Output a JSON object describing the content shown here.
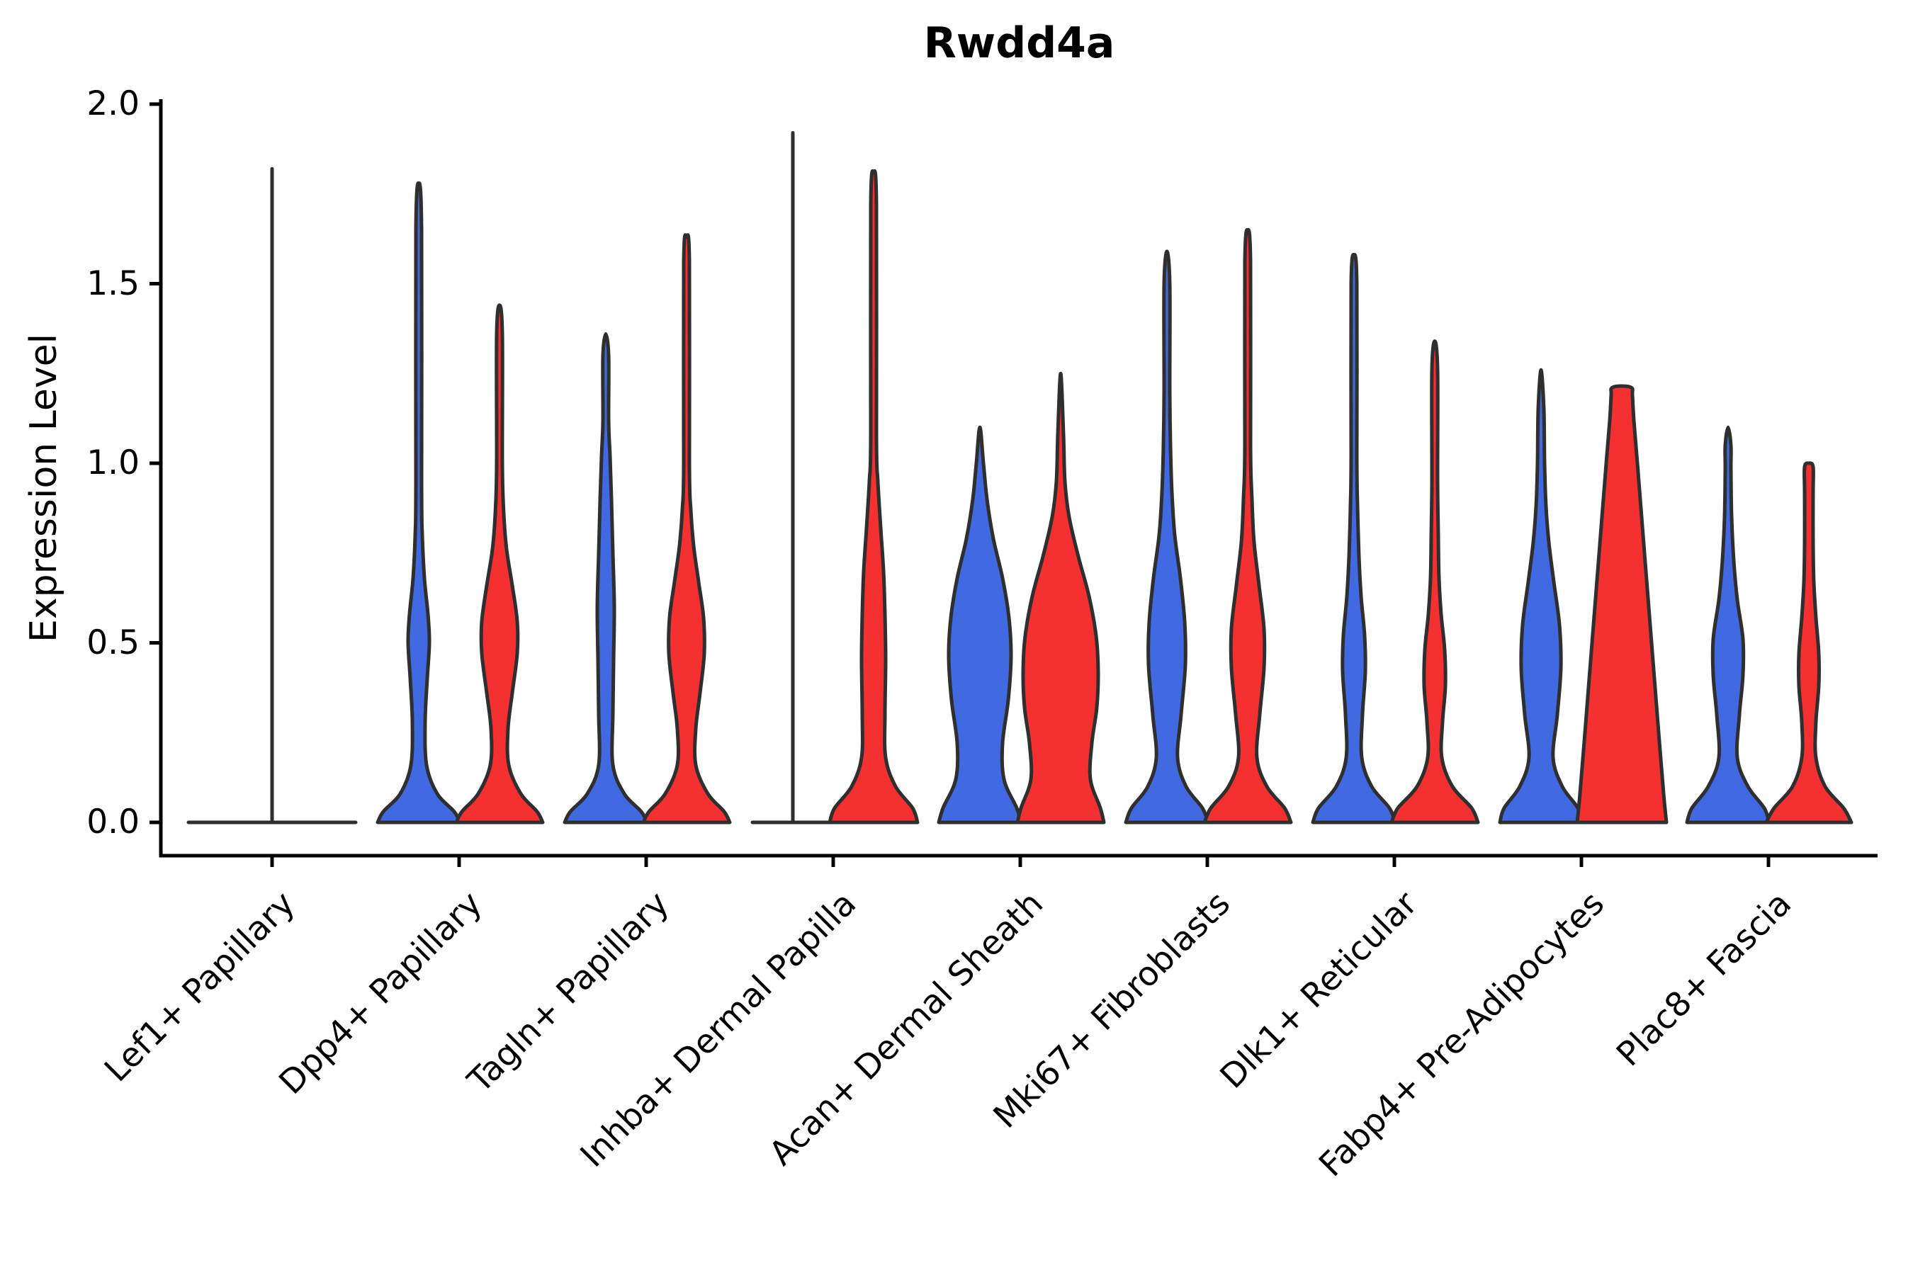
{
  "chart_data": {
    "type": "violin",
    "title": "Rwdd4a",
    "xlabel": "",
    "ylabel": "Expression Level",
    "ylim": [
      0,
      2
    ],
    "yticks": [
      0,
      0.5,
      1.0,
      1.5,
      2.0
    ],
    "ytick_labels": [
      "0.0",
      "0.5",
      "1.0",
      "1.5",
      "2.0"
    ],
    "grid": false,
    "legend": "none",
    "categories": [
      "Lef1+ Papillary",
      "Dpp4+ Papillary",
      "Tagln+ Papillary",
      "Inhba+ Dermal Papilla",
      "Acan+ Dermal Sheath",
      "Mki67+ Fibroblasts",
      "Dlk1+ Reticular",
      "Fabp4+ Pre-Adipocytes",
      "Plac8+ Fascia"
    ],
    "series": [
      {
        "id": "blue",
        "color": "#4169E1"
      },
      {
        "id": "red",
        "color": "#F43030"
      }
    ],
    "outline_color": "#2f2f2f",
    "axis_color": "#000000",
    "violins": [
      {
        "category_index": 0,
        "series": "single",
        "type": "flat",
        "flat_halfwidth": 118,
        "spike_top": 1.82
      },
      {
        "category_index": 1,
        "series": "blue",
        "type": "density",
        "max": 1.78,
        "profile": [
          [
            0,
            58
          ],
          [
            0.03,
            50
          ],
          [
            0.08,
            26
          ],
          [
            0.16,
            11
          ],
          [
            0.28,
            9
          ],
          [
            0.4,
            12
          ],
          [
            0.5,
            15
          ],
          [
            0.58,
            13
          ],
          [
            0.68,
            8
          ],
          [
            0.8,
            5
          ],
          [
            0.95,
            4
          ],
          [
            1.65,
            4
          ],
          [
            1.78,
            0
          ]
        ]
      },
      {
        "category_index": 1,
        "series": "red",
        "type": "density",
        "max": 1.44,
        "profile": [
          [
            0,
            61
          ],
          [
            0.03,
            53
          ],
          [
            0.08,
            30
          ],
          [
            0.16,
            13
          ],
          [
            0.26,
            12
          ],
          [
            0.36,
            18
          ],
          [
            0.47,
            25
          ],
          [
            0.56,
            25
          ],
          [
            0.66,
            18
          ],
          [
            0.76,
            10
          ],
          [
            0.86,
            6
          ],
          [
            1.0,
            4
          ],
          [
            1.36,
            4
          ],
          [
            1.44,
            0
          ]
        ]
      },
      {
        "category_index": 2,
        "series": "blue",
        "type": "density",
        "max": 1.36,
        "profile": [
          [
            0,
            58
          ],
          [
            0.03,
            50
          ],
          [
            0.08,
            26
          ],
          [
            0.16,
            10
          ],
          [
            0.3,
            10
          ],
          [
            0.45,
            11
          ],
          [
            0.6,
            12
          ],
          [
            0.75,
            10
          ],
          [
            0.9,
            8
          ],
          [
            1.02,
            6
          ],
          [
            1.12,
            4
          ],
          [
            1.3,
            4
          ],
          [
            1.36,
            0
          ]
        ]
      },
      {
        "category_index": 2,
        "series": "red",
        "type": "density",
        "max": 1.63,
        "profile": [
          [
            0,
            61
          ],
          [
            0.03,
            53
          ],
          [
            0.08,
            30
          ],
          [
            0.16,
            13
          ],
          [
            0.26,
            13
          ],
          [
            0.36,
            19
          ],
          [
            0.47,
            25
          ],
          [
            0.57,
            24
          ],
          [
            0.67,
            17
          ],
          [
            0.77,
            10
          ],
          [
            0.87,
            6
          ],
          [
            1.0,
            4
          ],
          [
            1.56,
            4
          ],
          [
            1.63,
            0
          ]
        ]
      },
      {
        "category_index": 3,
        "series": "blue",
        "type": "flat",
        "flat_halfwidth": 57,
        "spike_top": 1.92
      },
      {
        "category_index": 3,
        "series": "red",
        "type": "density",
        "max": 1.81,
        "profile": [
          [
            0,
            62
          ],
          [
            0.04,
            55
          ],
          [
            0.1,
            31
          ],
          [
            0.18,
            17
          ],
          [
            0.3,
            16
          ],
          [
            0.45,
            17
          ],
          [
            0.58,
            16
          ],
          [
            0.7,
            14
          ],
          [
            0.82,
            10
          ],
          [
            0.95,
            6
          ],
          [
            1.08,
            4
          ],
          [
            1.72,
            4
          ],
          [
            1.81,
            0
          ]
        ]
      },
      {
        "category_index": 4,
        "series": "blue",
        "type": "density",
        "max": 1.1,
        "profile": [
          [
            0,
            58
          ],
          [
            0.04,
            52
          ],
          [
            0.12,
            34
          ],
          [
            0.22,
            32
          ],
          [
            0.34,
            40
          ],
          [
            0.46,
            44
          ],
          [
            0.57,
            41
          ],
          [
            0.68,
            32
          ],
          [
            0.79,
            19
          ],
          [
            0.9,
            10
          ],
          [
            1.0,
            5
          ],
          [
            1.1,
            0
          ]
        ]
      },
      {
        "category_index": 4,
        "series": "red",
        "type": "density",
        "max": 1.25,
        "profile": [
          [
            0,
            61
          ],
          [
            0.04,
            56
          ],
          [
            0.12,
            42
          ],
          [
            0.22,
            44
          ],
          [
            0.32,
            51
          ],
          [
            0.42,
            53
          ],
          [
            0.52,
            50
          ],
          [
            0.63,
            40
          ],
          [
            0.74,
            25
          ],
          [
            0.85,
            12
          ],
          [
            0.95,
            6
          ],
          [
            1.08,
            4
          ],
          [
            1.25,
            0
          ]
        ]
      },
      {
        "category_index": 5,
        "series": "blue",
        "type": "density",
        "max": 1.59,
        "profile": [
          [
            0,
            58
          ],
          [
            0.04,
            50
          ],
          [
            0.1,
            27
          ],
          [
            0.18,
            15
          ],
          [
            0.3,
            20
          ],
          [
            0.44,
            26
          ],
          [
            0.56,
            25
          ],
          [
            0.68,
            19
          ],
          [
            0.8,
            11
          ],
          [
            0.92,
            7
          ],
          [
            1.05,
            5
          ],
          [
            1.2,
            4
          ],
          [
            1.5,
            4
          ],
          [
            1.59,
            0
          ]
        ]
      },
      {
        "category_index": 5,
        "series": "red",
        "type": "density",
        "max": 1.65,
        "profile": [
          [
            0,
            61
          ],
          [
            0.04,
            52
          ],
          [
            0.1,
            27
          ],
          [
            0.18,
            13
          ],
          [
            0.3,
            17
          ],
          [
            0.43,
            23
          ],
          [
            0.54,
            23
          ],
          [
            0.66,
            16
          ],
          [
            0.78,
            9
          ],
          [
            0.9,
            6
          ],
          [
            1.05,
            4
          ],
          [
            1.56,
            4
          ],
          [
            1.65,
            0
          ]
        ]
      },
      {
        "category_index": 6,
        "series": "blue",
        "type": "density",
        "max": 1.58,
        "profile": [
          [
            0,
            58
          ],
          [
            0.04,
            50
          ],
          [
            0.1,
            25
          ],
          [
            0.18,
            11
          ],
          [
            0.3,
            12
          ],
          [
            0.42,
            16
          ],
          [
            0.52,
            15
          ],
          [
            0.63,
            10
          ],
          [
            0.74,
            7
          ],
          [
            0.88,
            5
          ],
          [
            1.02,
            4
          ],
          [
            1.5,
            4
          ],
          [
            1.58,
            0
          ]
        ]
      },
      {
        "category_index": 6,
        "series": "red",
        "type": "density",
        "max": 1.34,
        "profile": [
          [
            0,
            61
          ],
          [
            0.04,
            52
          ],
          [
            0.1,
            25
          ],
          [
            0.18,
            10
          ],
          [
            0.28,
            11
          ],
          [
            0.38,
            15
          ],
          [
            0.48,
            14
          ],
          [
            0.58,
            9
          ],
          [
            0.68,
            6
          ],
          [
            0.8,
            5
          ],
          [
            0.95,
            4
          ],
          [
            1.26,
            4
          ],
          [
            1.34,
            0
          ]
        ]
      },
      {
        "category_index": 7,
        "series": "blue",
        "type": "density",
        "max": 1.26,
        "profile": [
          [
            0,
            58
          ],
          [
            0.04,
            52
          ],
          [
            0.1,
            30
          ],
          [
            0.18,
            17
          ],
          [
            0.3,
            23
          ],
          [
            0.43,
            28
          ],
          [
            0.55,
            26
          ],
          [
            0.67,
            18
          ],
          [
            0.78,
            11
          ],
          [
            0.88,
            7
          ],
          [
            1.0,
            5
          ],
          [
            1.15,
            4
          ],
          [
            1.26,
            0
          ]
        ]
      },
      {
        "category_index": 7,
        "series": "red",
        "type": "density",
        "max": 1.21,
        "profile": [
          [
            0,
            63
          ],
          [
            0.08,
            59
          ],
          [
            0.25,
            52
          ],
          [
            0.45,
            44
          ],
          [
            0.65,
            36
          ],
          [
            0.85,
            28
          ],
          [
            1.0,
            22
          ],
          [
            1.12,
            17
          ],
          [
            1.19,
            15
          ],
          [
            1.21,
            14
          ],
          [
            1.215,
            0
          ]
        ]
      },
      {
        "category_index": 8,
        "series": "blue",
        "type": "density",
        "max": 1.1,
        "profile": [
          [
            0,
            58
          ],
          [
            0.04,
            51
          ],
          [
            0.1,
            28
          ],
          [
            0.18,
            13
          ],
          [
            0.3,
            16
          ],
          [
            0.41,
            21
          ],
          [
            0.51,
            21
          ],
          [
            0.62,
            13
          ],
          [
            0.73,
            8
          ],
          [
            0.85,
            5
          ],
          [
            0.98,
            4
          ],
          [
            1.05,
            4
          ],
          [
            1.1,
            0
          ]
        ]
      },
      {
        "category_index": 8,
        "series": "red",
        "type": "density",
        "max": 1.0,
        "profile": [
          [
            0,
            60
          ],
          [
            0.04,
            49
          ],
          [
            0.1,
            23
          ],
          [
            0.18,
            10
          ],
          [
            0.28,
            10
          ],
          [
            0.38,
            14
          ],
          [
            0.47,
            14
          ],
          [
            0.57,
            10
          ],
          [
            0.67,
            7
          ],
          [
            0.78,
            6
          ],
          [
            0.92,
            6
          ],
          [
            0.99,
            6
          ],
          [
            1.0,
            0
          ]
        ]
      }
    ]
  }
}
